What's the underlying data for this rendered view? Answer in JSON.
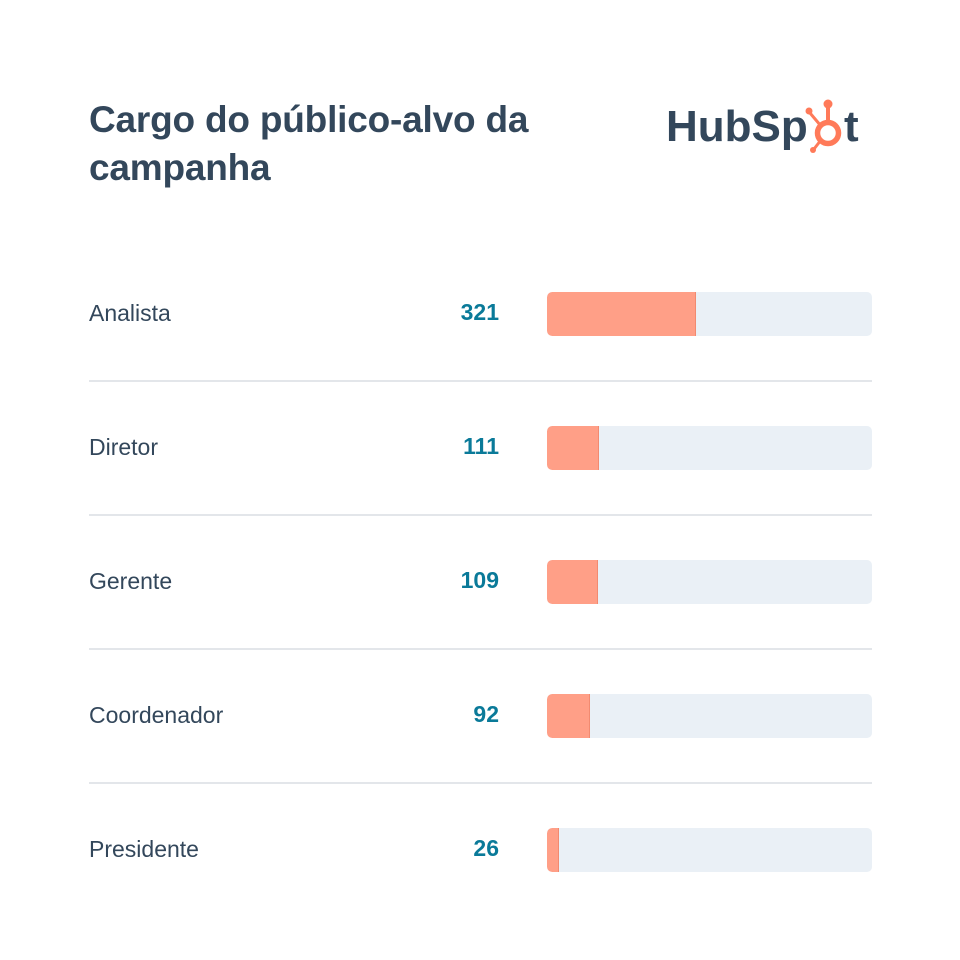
{
  "header": {
    "title": "Cargo do público-alvo da campanha",
    "logo_text_1": "HubSp",
    "logo_text_2": "t"
  },
  "colors": {
    "title": "#33475b",
    "value": "#0a7a99",
    "bar_fill": "#ff9f87",
    "bar_track": "#eaf0f6",
    "logo_accent": "#ff7a59"
  },
  "chart_data": {
    "type": "bar",
    "orientation": "horizontal",
    "title": "Cargo do público-alvo da campanha",
    "categories": [
      "Analista",
      "Diretor",
      "Gerente",
      "Coordenador",
      "Presidente"
    ],
    "values": [
      321,
      111,
      109,
      92,
      26
    ],
    "xlabel": "",
    "ylabel": "",
    "xlim": [
      0,
      700
    ],
    "grid": false,
    "legend": "none"
  },
  "rows": [
    {
      "label": "Analista",
      "value": "321"
    },
    {
      "label": "Diretor",
      "value": "111"
    },
    {
      "label": "Gerente",
      "value": "109"
    },
    {
      "label": "Coordenador",
      "value": "92"
    },
    {
      "label": "Presidente",
      "value": "26"
    }
  ]
}
